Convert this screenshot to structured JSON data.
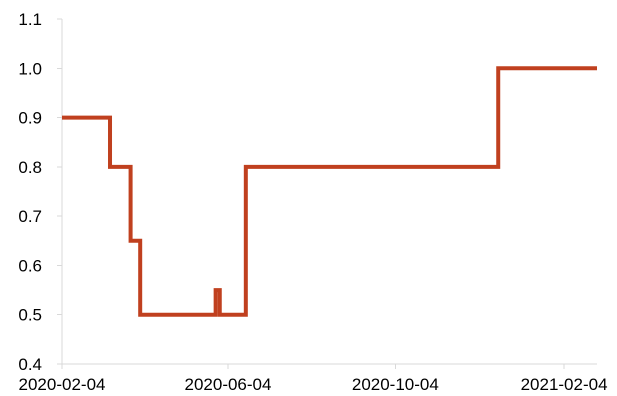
{
  "chart_data": {
    "type": "line",
    "step": true,
    "title": "",
    "xlabel": "",
    "ylabel": "",
    "ylim": [
      0.4,
      1.1
    ],
    "y_ticks": [
      "0.4",
      "0.5",
      "0.6",
      "0.7",
      "0.8",
      "0.9",
      "1.0",
      "1.1"
    ],
    "xlim": [
      "2020-02-04",
      "2021-02-28"
    ],
    "x_ticks": [
      "2020-02-04",
      "2020-06-04",
      "2020-10-04",
      "2021-02-04"
    ],
    "grid": false,
    "legend": "none",
    "series": [
      {
        "color": "#c0401f",
        "x": [
          "2020-02-04",
          "2020-03-10",
          "2020-03-25",
          "2020-04-01",
          "2020-05-26",
          "2020-05-29",
          "2020-06-05",
          "2020-06-17",
          "2020-12-18",
          "2021-02-28"
        ],
        "y": [
          0.9,
          0.8,
          0.65,
          0.5,
          0.55,
          0.5,
          0.5,
          0.8,
          1.0,
          1.0
        ]
      }
    ]
  }
}
